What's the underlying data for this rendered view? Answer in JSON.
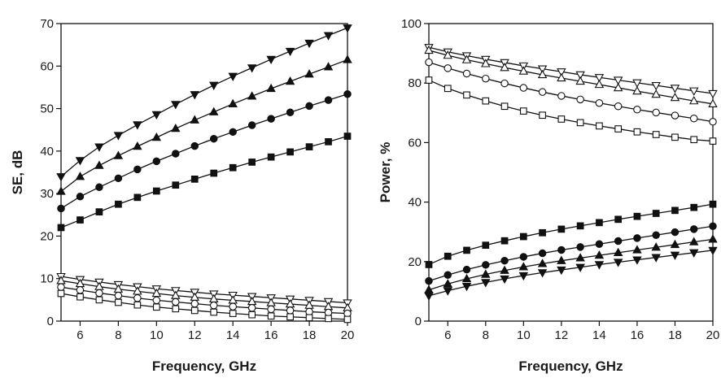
{
  "chart_data": [
    {
      "type": "line",
      "xlabel": "Frequency, GHz",
      "ylabel": "SE, dB",
      "xlim": [
        5,
        20
      ],
      "ylim": [
        0,
        70
      ],
      "xticks": [
        6,
        8,
        10,
        12,
        14,
        16,
        18,
        20
      ],
      "yticks": [
        0,
        10,
        20,
        30,
        40,
        50,
        60,
        70
      ],
      "x": [
        5,
        6,
        7,
        8,
        9,
        10,
        11,
        12,
        13,
        14,
        15,
        16,
        17,
        18,
        19,
        20
      ],
      "grid": false,
      "series": [
        {
          "marker": "triangle-down-filled",
          "values": [
            34.0,
            37.8,
            41.0,
            43.7,
            46.2,
            48.6,
            51.0,
            53.3,
            55.5,
            57.6,
            59.6,
            61.6,
            63.5,
            65.4,
            67.2,
            69.0
          ]
        },
        {
          "marker": "triangle-up-filled",
          "values": [
            30.5,
            34.0,
            36.6,
            38.9,
            41.1,
            43.2,
            45.3,
            47.3,
            49.2,
            51.1,
            52.9,
            54.7,
            56.4,
            58.1,
            59.8,
            61.5
          ]
        },
        {
          "marker": "circle-filled",
          "values": [
            26.5,
            29.3,
            31.5,
            33.6,
            35.7,
            37.6,
            39.4,
            41.2,
            42.9,
            44.5,
            46.1,
            47.6,
            49.1,
            50.6,
            52.0,
            53.4
          ]
        },
        {
          "marker": "square-filled",
          "values": [
            22.0,
            23.8,
            25.7,
            27.5,
            29.1,
            30.6,
            32.0,
            33.4,
            34.8,
            36.1,
            37.4,
            38.6,
            39.8,
            41.0,
            42.2,
            43.5
          ]
        },
        {
          "marker": "triangle-down-open",
          "values": [
            10.5,
            9.8,
            9.2,
            8.6,
            8.1,
            7.6,
            7.2,
            6.8,
            6.4,
            6.1,
            5.8,
            5.5,
            5.2,
            4.9,
            4.6,
            4.3
          ]
        },
        {
          "marker": "triangle-up-open",
          "values": [
            9.5,
            8.8,
            8.1,
            7.5,
            7.0,
            6.5,
            6.0,
            5.6,
            5.2,
            4.9,
            4.6,
            4.3,
            4.0,
            3.7,
            3.4,
            3.1
          ]
        },
        {
          "marker": "circle-open",
          "values": [
            8.0,
            7.3,
            6.6,
            6.0,
            5.4,
            4.9,
            4.5,
            4.1,
            3.7,
            3.4,
            3.1,
            2.8,
            2.5,
            2.2,
            2.0,
            1.8
          ]
        },
        {
          "marker": "square-open",
          "values": [
            6.5,
            5.7,
            5.0,
            4.4,
            3.8,
            3.3,
            2.9,
            2.5,
            2.1,
            1.8,
            1.5,
            1.2,
            1.0,
            0.8,
            0.6,
            0.4
          ]
        }
      ]
    },
    {
      "type": "line",
      "xlabel": "Frequency, GHz",
      "ylabel": "Power, %",
      "xlim": [
        5,
        20
      ],
      "ylim": [
        0,
        100
      ],
      "xticks": [
        6,
        8,
        10,
        12,
        14,
        16,
        18,
        20
      ],
      "yticks": [
        0,
        20,
        40,
        60,
        80,
        100
      ],
      "x": [
        5,
        6,
        7,
        8,
        9,
        10,
        11,
        12,
        13,
        14,
        15,
        16,
        17,
        18,
        19,
        20
      ],
      "grid": false,
      "series": [
        {
          "marker": "triangle-down-open",
          "values": [
            92.0,
            90.5,
            89.2,
            88.0,
            86.9,
            85.8,
            84.8,
            83.8,
            82.8,
            81.9,
            81.0,
            80.1,
            79.2,
            78.3,
            77.4,
            76.5
          ]
        },
        {
          "marker": "triangle-up-open",
          "values": [
            91.0,
            89.3,
            87.8,
            86.5,
            85.2,
            84.0,
            82.8,
            81.7,
            80.6,
            79.5,
            78.4,
            77.3,
            76.2,
            75.1,
            74.0,
            73.0
          ]
        },
        {
          "marker": "circle-open",
          "values": [
            87.0,
            85.0,
            83.2,
            81.5,
            79.9,
            78.4,
            77.0,
            75.7,
            74.5,
            73.3,
            72.2,
            71.1,
            70.1,
            69.1,
            68.1,
            67.0
          ]
        },
        {
          "marker": "square-open",
          "values": [
            81.0,
            78.2,
            76.0,
            74.0,
            72.2,
            70.6,
            69.2,
            67.9,
            66.7,
            65.6,
            64.6,
            63.6,
            62.7,
            61.8,
            61.0,
            60.5
          ]
        },
        {
          "marker": "square-filled",
          "values": [
            19.0,
            21.8,
            23.8,
            25.5,
            27.0,
            28.4,
            29.7,
            30.9,
            32.0,
            33.1,
            34.2,
            35.2,
            36.2,
            37.2,
            38.2,
            39.3
          ]
        },
        {
          "marker": "circle-filled",
          "values": [
            13.5,
            15.5,
            17.3,
            18.9,
            20.3,
            21.6,
            22.8,
            23.9,
            24.9,
            25.9,
            26.9,
            27.9,
            28.9,
            29.9,
            30.9,
            31.9
          ]
        },
        {
          "marker": "triangle-up-filled",
          "values": [
            10.5,
            12.5,
            14.2,
            15.7,
            17.0,
            18.2,
            19.3,
            20.3,
            21.2,
            22.1,
            23.0,
            23.9,
            24.8,
            25.7,
            26.6,
            27.5
          ]
        },
        {
          "marker": "triangle-down-filled",
          "values": [
            8.5,
            10.2,
            11.7,
            13.0,
            14.2,
            15.3,
            16.3,
            17.2,
            18.1,
            19.0,
            19.8,
            20.6,
            21.4,
            22.2,
            23.0,
            23.8
          ]
        }
      ]
    }
  ]
}
